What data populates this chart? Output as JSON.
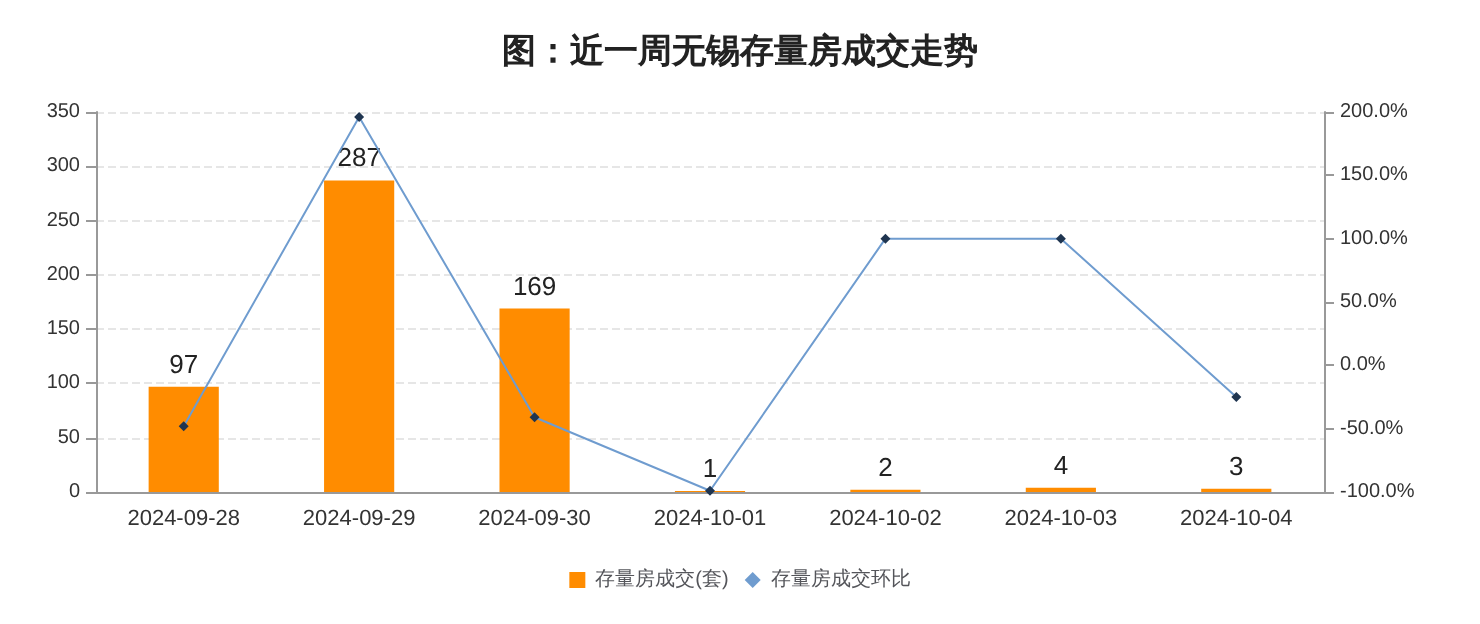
{
  "chart_data": {
    "type": "bar",
    "title": "图：近一周无锡存量房成交走势",
    "categories": [
      "2024-09-28",
      "2024-09-29",
      "2024-09-30",
      "2024-10-01",
      "2024-10-02",
      "2024-10-03",
      "2024-10-04"
    ],
    "series": [
      {
        "name": "存量房成交(套)",
        "color": "#ff8c00",
        "values": [
          97,
          287,
          169,
          1,
          2,
          4,
          3
        ],
        "value_labels": [
          "97",
          "287",
          "169",
          "1",
          "2",
          "4",
          "3"
        ]
      },
      {
        "name": "存量房成交环比",
        "type": "line",
        "axis": "y2",
        "color": "#6f9ccf",
        "marker": "diamond",
        "values": [
          -48,
          196,
          -41,
          -99,
          100,
          100,
          -25
        ]
      }
    ],
    "ylim": [
      0,
      350
    ],
    "yticks": [
      0,
      50,
      100,
      150,
      200,
      250,
      300,
      350
    ],
    "y2lim": [
      -100,
      200
    ],
    "y2ticks": [
      {
        "value": -100,
        "label": "-100.0%"
      },
      {
        "value": -50,
        "label": "-50.0%"
      },
      {
        "value": 0,
        "label": "0.0%"
      },
      {
        "value": 50,
        "label": "50.0%"
      },
      {
        "value": 100,
        "label": "100.0%"
      },
      {
        "value": 150,
        "label": "150.0%"
      },
      {
        "value": 200,
        "label": "200.0%"
      }
    ],
    "grid": "y",
    "legend": "bottom"
  }
}
